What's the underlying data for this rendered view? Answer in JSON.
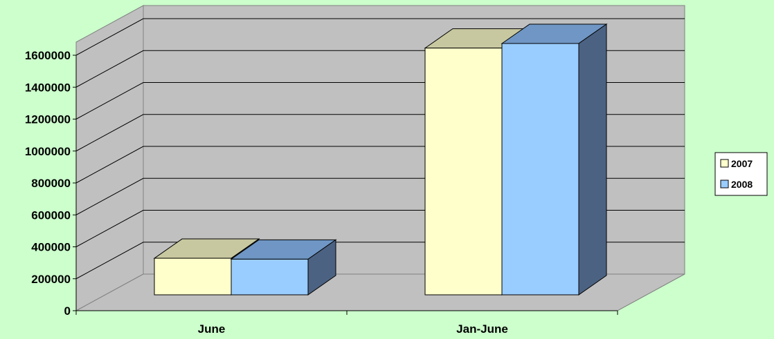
{
  "chart_data": {
    "type": "bar",
    "subtype": "3d-clustered-column",
    "categories": [
      "June",
      "Jan-June"
    ],
    "series": [
      {
        "name": "2007",
        "values": [
          240000,
          1620000
        ],
        "color": "#ffffcc",
        "top_color": "#c8c8a0",
        "side_color": "#666666"
      },
      {
        "name": "2008",
        "values": [
          234000,
          1650000
        ],
        "color": "#99ccff",
        "top_color": "#6f96c4",
        "side_color": "#4c6282"
      }
    ],
    "title": "",
    "xlabel": "",
    "ylabel": "",
    "ylim": [
      0,
      1600000
    ],
    "yticks": [
      0,
      200000,
      400000,
      600000,
      800000,
      1000000,
      1200000,
      1400000,
      1600000
    ],
    "ytick_labels": [
      "0",
      "200000",
      "400000",
      "600000",
      "800000",
      "1000000",
      "1200000",
      "1400000",
      "1600000"
    ],
    "grid": true,
    "legend": "right",
    "wall_color": "#c0c0c0",
    "background_color": "#ccffcc"
  }
}
